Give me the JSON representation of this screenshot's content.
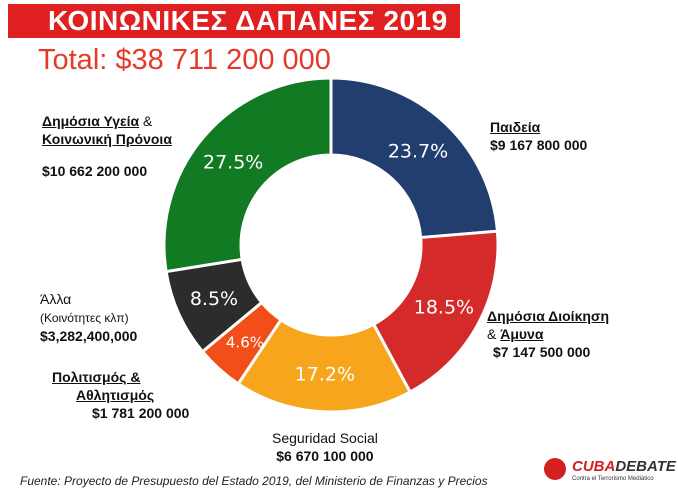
{
  "title": "ΚΟΙΝΩΝΙΚΕΣ ΔΑΠΑΝΕΣ 2019",
  "total": "Total: $38 711 200 000",
  "source": "Fuente: Proyecto de Presupuesto del Estado 2019, del Ministerio de Finanzas y Precios",
  "logo": {
    "text_a": "CUBA",
    "text_b": "DEBATE",
    "subtitle": "Contra el Terrorismo Mediático"
  },
  "labels": {
    "education": {
      "line1": "Παιδεία",
      "amount": "$9 167 800 000"
    },
    "admin": {
      "line1": "Δημόσια Διοίκηση",
      "amp": "& ",
      "line2": "Άμυνα",
      "amount": "$7 147 500 000"
    },
    "security": {
      "line1": "Seguridad Social",
      "amount": "$6 670 100 000"
    },
    "culture": {
      "line1": "Πολιτισμός &",
      "line2": "Αθλητισμός",
      "amount": "$1 781 200 000"
    },
    "other": {
      "line1": "Άλλα",
      "line2": "(Κοινότητες κλπ)",
      "amount": "$3,282,400,000"
    },
    "health": {
      "line1": "Δημόσια Υγεία",
      "amp": " &",
      "line2": "Κοινωνική Πρόνοια",
      "amount": "$10 662 200 000"
    }
  },
  "chart_data": {
    "type": "pie",
    "style": "donut",
    "title": "ΚΟΙΝΩΝΙΚΕΣ ΔΑΠΑΝΕΣ 2019",
    "categories": [
      "Παιδεία",
      "Δημόσια Διοίκηση & Άμυνα",
      "Seguridad Social",
      "Πολιτισμός & Αθλητισμός",
      "Άλλα (Κοινότητες κλπ)",
      "Δημόσια Υγεία & Κοινωνική Πρόνοια"
    ],
    "values": [
      9167800000,
      7147500000,
      6670100000,
      1781200000,
      3282400000,
      10662200000
    ],
    "percent_labels": [
      "23.7%",
      "18.5%",
      "17.2%",
      "4.6%",
      "8.5%",
      "27.5%"
    ],
    "percents": [
      23.7,
      18.5,
      17.2,
      4.6,
      8.5,
      27.5
    ],
    "colors": [
      "#213e6e",
      "#d42a2a",
      "#f7a51c",
      "#f24e1a",
      "#2c2c2c",
      "#127a22"
    ],
    "legend": "none"
  }
}
